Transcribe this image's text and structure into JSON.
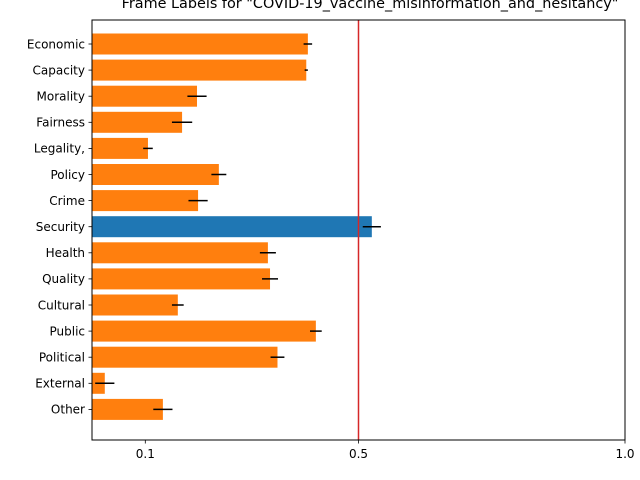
{
  "chart_data": {
    "type": "bar",
    "orientation": "horizontal",
    "title": "Frame Labels for \"COVID-19_vaccine_misinformation_and_hesitancy\"",
    "xlabel": "",
    "ylabel": "",
    "xlim": [
      0.0,
      1.0
    ],
    "xticks": [
      0.1,
      0.5,
      1.0
    ],
    "xtick_labels": [
      "0.1",
      "0.5",
      "1.0"
    ],
    "grid": false,
    "legend": "none",
    "reference_line": {
      "x": 0.5,
      "color": "#d62728"
    },
    "categories": [
      "Economic",
      "Capacity",
      "Morality",
      "Fairness",
      "Legality,",
      "Policy",
      "Crime",
      "Security",
      "Health",
      "Quality",
      "Cultural",
      "Public",
      "Political",
      "External",
      "Other"
    ],
    "values": [
      0.405,
      0.402,
      0.197,
      0.169,
      0.105,
      0.238,
      0.199,
      0.525,
      0.33,
      0.334,
      0.161,
      0.42,
      0.348,
      0.024,
      0.133
    ],
    "errors": [
      0.008,
      0.003,
      0.018,
      0.019,
      0.009,
      0.014,
      0.018,
      0.017,
      0.015,
      0.015,
      0.011,
      0.011,
      0.013,
      0.018,
      0.018
    ],
    "highlight": "Security",
    "colors": {
      "default": "#ff7f0e",
      "highlight": "#1f77b4",
      "error_bar": "#000000"
    }
  }
}
